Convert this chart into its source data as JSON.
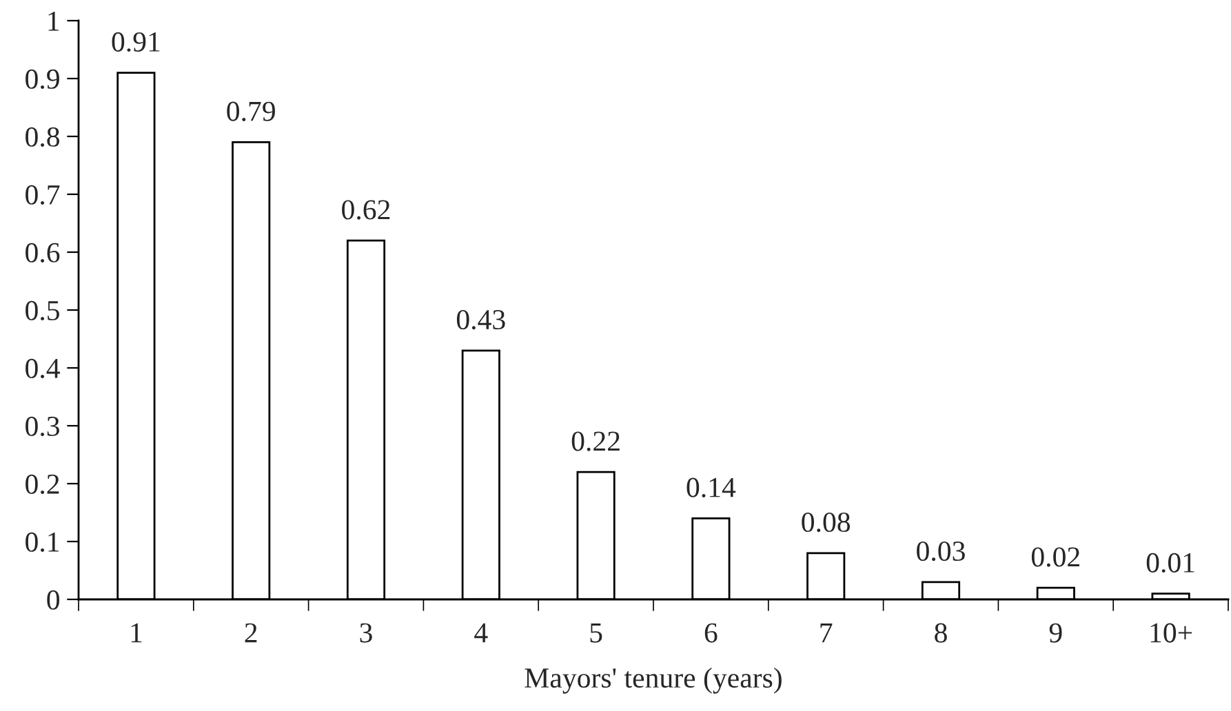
{
  "chart_data": {
    "type": "bar",
    "xlabel": "Mayors' tenure (years)",
    "categories": [
      "1",
      "2",
      "3",
      "4",
      "5",
      "6",
      "7",
      "8",
      "9",
      "10+"
    ],
    "values": [
      0.91,
      0.79,
      0.62,
      0.43,
      0.22,
      0.14,
      0.08,
      0.03,
      0.02,
      0.01
    ],
    "color": "#ffffff",
    "ylim": [
      0,
      1
    ],
    "yticks": [
      0,
      0.1,
      0.2,
      0.3,
      0.4,
      0.5,
      0.6,
      0.7,
      0.8,
      0.9,
      1
    ],
    "data_labels": true,
    "grid": false,
    "legend": false
  }
}
